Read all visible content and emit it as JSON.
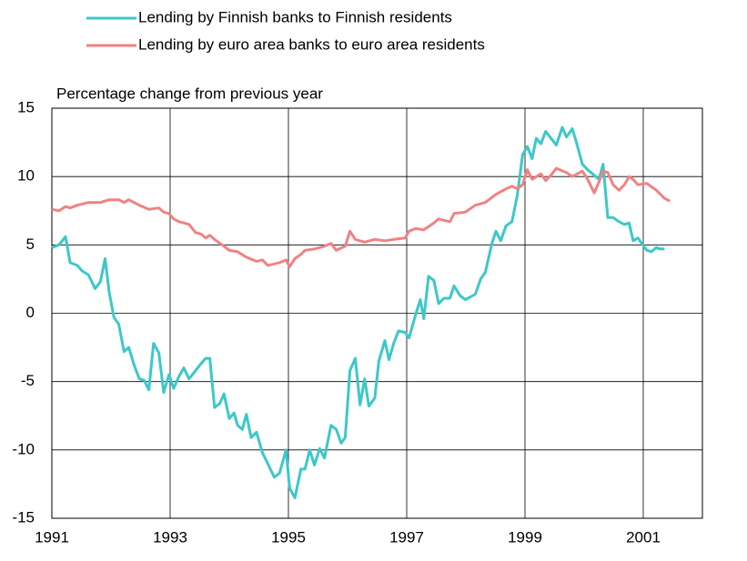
{
  "chart_data": {
    "type": "line",
    "y_label": "Percentage change from previous year",
    "xlim": [
      1991,
      2002
    ],
    "xticks": [
      1991,
      1993,
      1995,
      1997,
      1999,
      2001
    ],
    "ylim": [
      -15,
      15
    ],
    "yticks": [
      -15,
      -10,
      -5,
      0,
      5,
      10,
      15
    ],
    "grid": true,
    "legend": "top",
    "series": [
      {
        "name": "Lending by Finnish banks to Finnish residents",
        "color": "#3cc8c8",
        "x": [
          1991.0,
          1991.12,
          1991.23,
          1991.31,
          1991.43,
          1991.51,
          1991.62,
          1991.73,
          1991.82,
          1991.9,
          1991.97,
          1992.05,
          1992.13,
          1992.22,
          1992.3,
          1992.39,
          1992.48,
          1992.56,
          1992.64,
          1992.72,
          1992.81,
          1992.89,
          1992.98,
          1993.06,
          1993.15,
          1993.23,
          1993.32,
          1993.43,
          1993.52,
          1993.6,
          1993.67,
          1993.75,
          1993.84,
          1993.91,
          1994.0,
          1994.08,
          1994.14,
          1994.22,
          1994.29,
          1994.37,
          1994.46,
          1994.56,
          1994.65,
          1994.76,
          1994.85,
          1994.96,
          1995.02,
          1995.11,
          1995.21,
          1995.28,
          1995.36,
          1995.44,
          1995.53,
          1995.61,
          1995.72,
          1995.81,
          1995.89,
          1995.96,
          1996.04,
          1996.13,
          1996.21,
          1996.29,
          1996.36,
          1996.46,
          1996.53,
          1996.63,
          1996.7,
          1996.78,
          1996.86,
          1996.97,
          1997.04,
          1997.15,
          1997.23,
          1997.29,
          1997.37,
          1997.46,
          1997.54,
          1997.63,
          1997.73,
          1997.8,
          1997.9,
          1997.99,
          1998.08,
          1998.16,
          1998.25,
          1998.33,
          1998.44,
          1998.51,
          1998.59,
          1998.68,
          1998.78,
          1998.87,
          1998.96,
          1999.04,
          1999.12,
          1999.19,
          1999.27,
          1999.35,
          1999.44,
          1999.53,
          1999.63,
          1999.7,
          1999.8,
          1999.87,
          1999.97,
          2000.06,
          2000.17,
          2000.25,
          2000.32,
          2000.4,
          2000.49,
          2000.59,
          2000.68,
          2000.76,
          2000.83,
          2000.91,
          2000.99,
          2001.06,
          2001.14,
          2001.22,
          2001.28,
          2001.36
        ],
        "values": [
          4.8,
          5.0,
          5.6,
          3.7,
          3.5,
          3.1,
          2.8,
          1.8,
          2.3,
          4.0,
          1.5,
          -0.3,
          -0.8,
          -2.8,
          -2.5,
          -3.8,
          -4.8,
          -4.9,
          -5.6,
          -2.2,
          -2.9,
          -5.8,
          -4.5,
          -5.5,
          -4.6,
          -4.0,
          -4.8,
          -4.2,
          -3.7,
          -3.3,
          -3.3,
          -6.9,
          -6.6,
          -5.9,
          -7.7,
          -7.3,
          -8.2,
          -8.5,
          -7.4,
          -9.1,
          -8.7,
          -10.2,
          -11.0,
          -12.0,
          -11.7,
          -10.0,
          -12.8,
          -13.5,
          -11.4,
          -11.4,
          -10.0,
          -11.1,
          -9.9,
          -10.6,
          -8.2,
          -8.5,
          -9.5,
          -9.1,
          -4.2,
          -3.3,
          -6.7,
          -4.8,
          -6.8,
          -6.2,
          -3.5,
          -2.0,
          -3.4,
          -2.2,
          -1.3,
          -1.4,
          -1.8,
          -0.1,
          1.0,
          -0.4,
          2.7,
          2.4,
          0.7,
          1.1,
          1.1,
          2.0,
          1.3,
          1.0,
          1.2,
          1.4,
          2.5,
          3.0,
          5.1,
          6.0,
          5.3,
          6.4,
          6.7,
          8.6,
          11.6,
          12.2,
          11.3,
          12.8,
          12.4,
          13.3,
          12.8,
          12.3,
          13.6,
          12.9,
          13.5,
          12.5,
          10.9,
          10.5,
          10.1,
          9.8,
          10.9,
          7.0,
          7.0,
          6.7,
          6.5,
          6.6,
          5.3,
          5.5,
          5.0,
          4.6,
          4.5,
          4.8,
          4.7,
          4.7
        ]
      },
      {
        "name": "Lending by euro area banks to euro area residents",
        "color": "#f08282",
        "x": [
          1991.0,
          1991.12,
          1991.23,
          1991.31,
          1991.43,
          1991.62,
          1991.82,
          1991.97,
          1992.13,
          1992.22,
          1992.3,
          1992.48,
          1992.64,
          1992.81,
          1992.89,
          1992.98,
          1993.06,
          1993.15,
          1993.32,
          1993.43,
          1993.52,
          1993.6,
          1993.67,
          1993.75,
          1993.91,
          1994.0,
          1994.14,
          1994.29,
          1994.46,
          1994.56,
          1994.65,
          1994.85,
          1994.96,
          1995.02,
          1995.11,
          1995.21,
          1995.28,
          1995.44,
          1995.61,
          1995.72,
          1995.81,
          1995.96,
          1996.04,
          1996.13,
          1996.29,
          1996.46,
          1996.63,
          1996.78,
          1996.97,
          1997.04,
          1997.15,
          1997.29,
          1997.46,
          1997.54,
          1997.63,
          1997.73,
          1997.8,
          1997.99,
          1998.16,
          1998.25,
          1998.33,
          1998.51,
          1998.68,
          1998.78,
          1998.87,
          1998.96,
          1999.04,
          1999.12,
          1999.27,
          1999.35,
          1999.44,
          1999.53,
          1999.7,
          1999.8,
          1999.97,
          2000.06,
          2000.17,
          2000.25,
          2000.32,
          2000.4,
          2000.49,
          2000.59,
          2000.68,
          2000.76,
          2000.83,
          2000.91,
          2001.06,
          2001.22,
          2001.36,
          2001.45
        ],
        "values": [
          7.6,
          7.5,
          7.8,
          7.7,
          7.9,
          8.1,
          8.1,
          8.3,
          8.3,
          8.1,
          8.3,
          7.9,
          7.6,
          7.7,
          7.4,
          7.3,
          6.9,
          6.7,
          6.5,
          5.9,
          5.8,
          5.5,
          5.7,
          5.4,
          4.9,
          4.6,
          4.5,
          4.1,
          3.8,
          3.9,
          3.5,
          3.7,
          3.9,
          3.4,
          4.0,
          4.3,
          4.6,
          4.7,
          4.9,
          5.1,
          4.6,
          4.9,
          6.0,
          5.4,
          5.2,
          5.4,
          5.3,
          5.4,
          5.5,
          6.0,
          6.2,
          6.1,
          6.6,
          6.9,
          6.8,
          6.7,
          7.3,
          7.4,
          7.9,
          8.0,
          8.1,
          8.7,
          9.1,
          9.3,
          9.1,
          9.4,
          10.5,
          9.8,
          10.2,
          9.7,
          10.1,
          10.6,
          10.3,
          10.0,
          10.4,
          9.8,
          8.8,
          9.6,
          10.4,
          10.3,
          9.4,
          9.0,
          9.4,
          10.0,
          9.8,
          9.4,
          9.5,
          9.0,
          8.4,
          8.2
        ]
      }
    ]
  }
}
